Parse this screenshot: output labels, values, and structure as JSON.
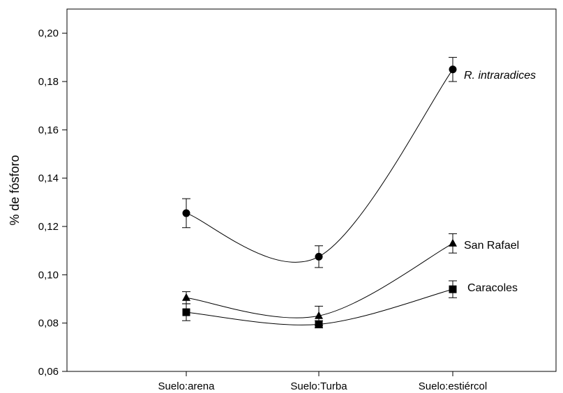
{
  "chart_data": {
    "type": "line",
    "title": "",
    "xlabel": "",
    "ylabel": "% de fósforo",
    "categories": [
      "Suelo:arena",
      "Suelo:Turba",
      "Suelo:estiércol"
    ],
    "ylim": [
      0.06,
      0.21
    ],
    "yticks": [
      0.06,
      0.08,
      0.1,
      0.12,
      0.14,
      0.16,
      0.18,
      0.2
    ],
    "ytick_labels": [
      "0,06",
      "0,08",
      "0,10",
      "0,12",
      "0,14",
      "0,16",
      "0,18",
      "0,20"
    ],
    "grid": false,
    "legend": "inline labels at right end of each line",
    "series": [
      {
        "name": "R. intraradices",
        "marker": "circle",
        "italic": true,
        "values": [
          0.1255,
          0.1075,
          0.185
        ],
        "errors": [
          0.006,
          0.0045,
          0.005
        ]
      },
      {
        "name": "San Rafael",
        "marker": "triangle",
        "italic": false,
        "values": [
          0.0905,
          0.083,
          0.113
        ],
        "errors": [
          0.0025,
          0.004,
          0.004
        ]
      },
      {
        "name": "Caracoles",
        "marker": "square",
        "italic": false,
        "values": [
          0.0845,
          0.0795,
          0.094
        ],
        "errors": [
          0.0035,
          0.0015,
          0.0035
        ]
      }
    ]
  }
}
